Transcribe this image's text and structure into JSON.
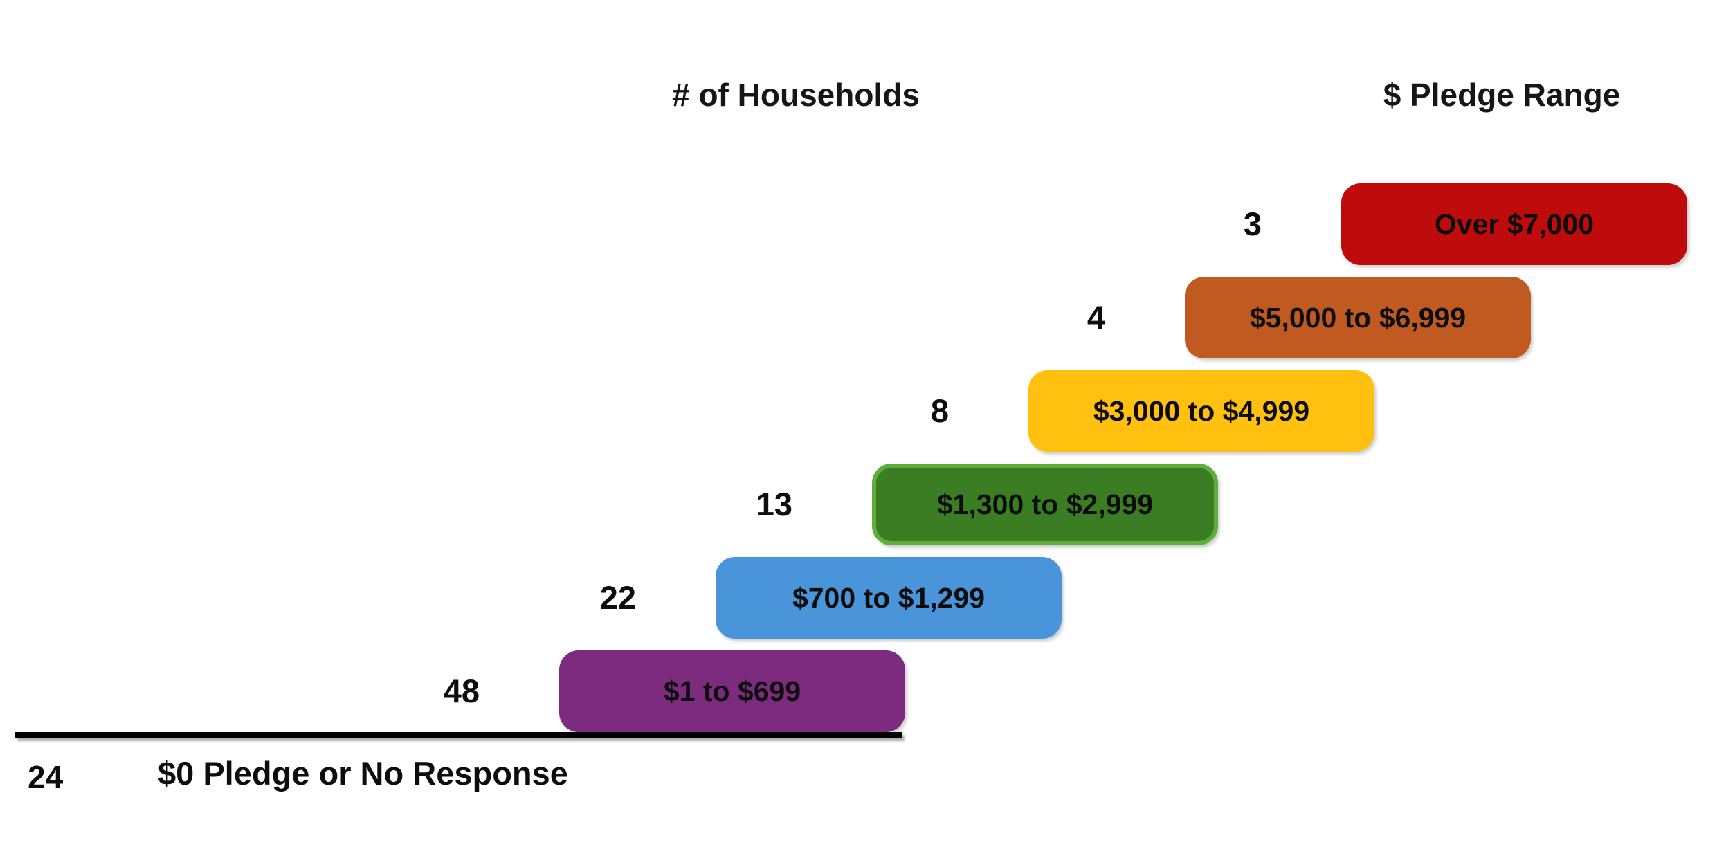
{
  "headers": {
    "households": "# of Households",
    "pledge_range": "$ Pledge Range"
  },
  "stairs": {
    "rows": [
      {
        "count": "3",
        "label": "Over $7,000",
        "fill": "#c00b0d",
        "border": null
      },
      {
        "count": "4",
        "label": "$5,000 to $6,999",
        "fill": "#c05a21",
        "border": null
      },
      {
        "count": "8",
        "label": "$3,000 to $4,999",
        "fill": "#ffc010",
        "border": null
      },
      {
        "count": "13",
        "label": "$1,300 to $2,999",
        "fill": "#3a7d23",
        "border": "#5fae3d"
      },
      {
        "count": "22",
        "label": "$700 to $1,299",
        "fill": "#4a94da",
        "border": null
      },
      {
        "count": "48",
        "label": "$1 to $699",
        "fill": "#7c2b7e",
        "border": null
      }
    ]
  },
  "baseline": {
    "count": "24",
    "label": "$0 Pledge or No Response",
    "line_color": "#000000"
  },
  "chart_data": {
    "type": "bar",
    "variant": "step-up-pledge-ladder",
    "title": "",
    "series_label": "# of Households",
    "category_label": "$ Pledge Range",
    "categories": [
      "$0 Pledge or No Response",
      "$1 to $699",
      "$700 to $1,299",
      "$1,300 to $2,999",
      "$3,000 to $4,999",
      "$5,000 to $6,999",
      "Over $7,000"
    ],
    "values": [
      24,
      48,
      22,
      13,
      8,
      4,
      3
    ],
    "colors": [
      null,
      "#7c2b7e",
      "#4a94da",
      "#3a7d23",
      "#ffc010",
      "#c05a21",
      "#c00b0d"
    ],
    "legend": "none",
    "grid": false,
    "notes": "Counts shown left of each pledge-range box; $0 row sits below a black baseline."
  }
}
